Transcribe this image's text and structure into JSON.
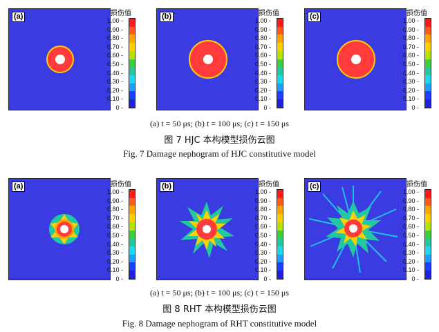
{
  "fig7": {
    "panels": [
      "(a)",
      "(b)",
      "(c)"
    ],
    "legend_title": "损伤值",
    "ticks": [
      "1.00",
      "0.90",
      "0.80",
      "0.70",
      "0.60",
      "0.50",
      "0.40",
      "0.30",
      "0.20",
      "0.10",
      "0"
    ],
    "subcaption": "(a) t = 50 μs; (b) t = 100 μs; (c) t = 150 μs",
    "caption_zh": "图 7    HJC 本构模型损伤云图",
    "caption_en": "Fig. 7    Damage nephogram of HJC constitutive model"
  },
  "fig8": {
    "panels": [
      "(a)",
      "(b)",
      "(c)"
    ],
    "legend_title": "损伤值",
    "ticks": [
      "1.00",
      "0.90",
      "0.80",
      "0.70",
      "0.60",
      "0.50",
      "0.40",
      "0.30",
      "0.20",
      "0.10",
      "0"
    ],
    "subcaption": "(a) t = 50 μs; (b) t = 100 μs; (c) t = 150 μs",
    "caption_zh": "图 8    RHT 本构模型损伤云图",
    "caption_en": "Fig. 8    Damage nephogram of RHT constitutive model"
  },
  "colors": [
    "#ff1a1a",
    "#ff5a1a",
    "#ffa500",
    "#ffd000",
    "#b8e000",
    "#3cd03c",
    "#22c8a0",
    "#1ad8f0",
    "#1aa0ff",
    "#1a40ff",
    "#2020e0"
  ],
  "background_color": "#3a3be0"
}
